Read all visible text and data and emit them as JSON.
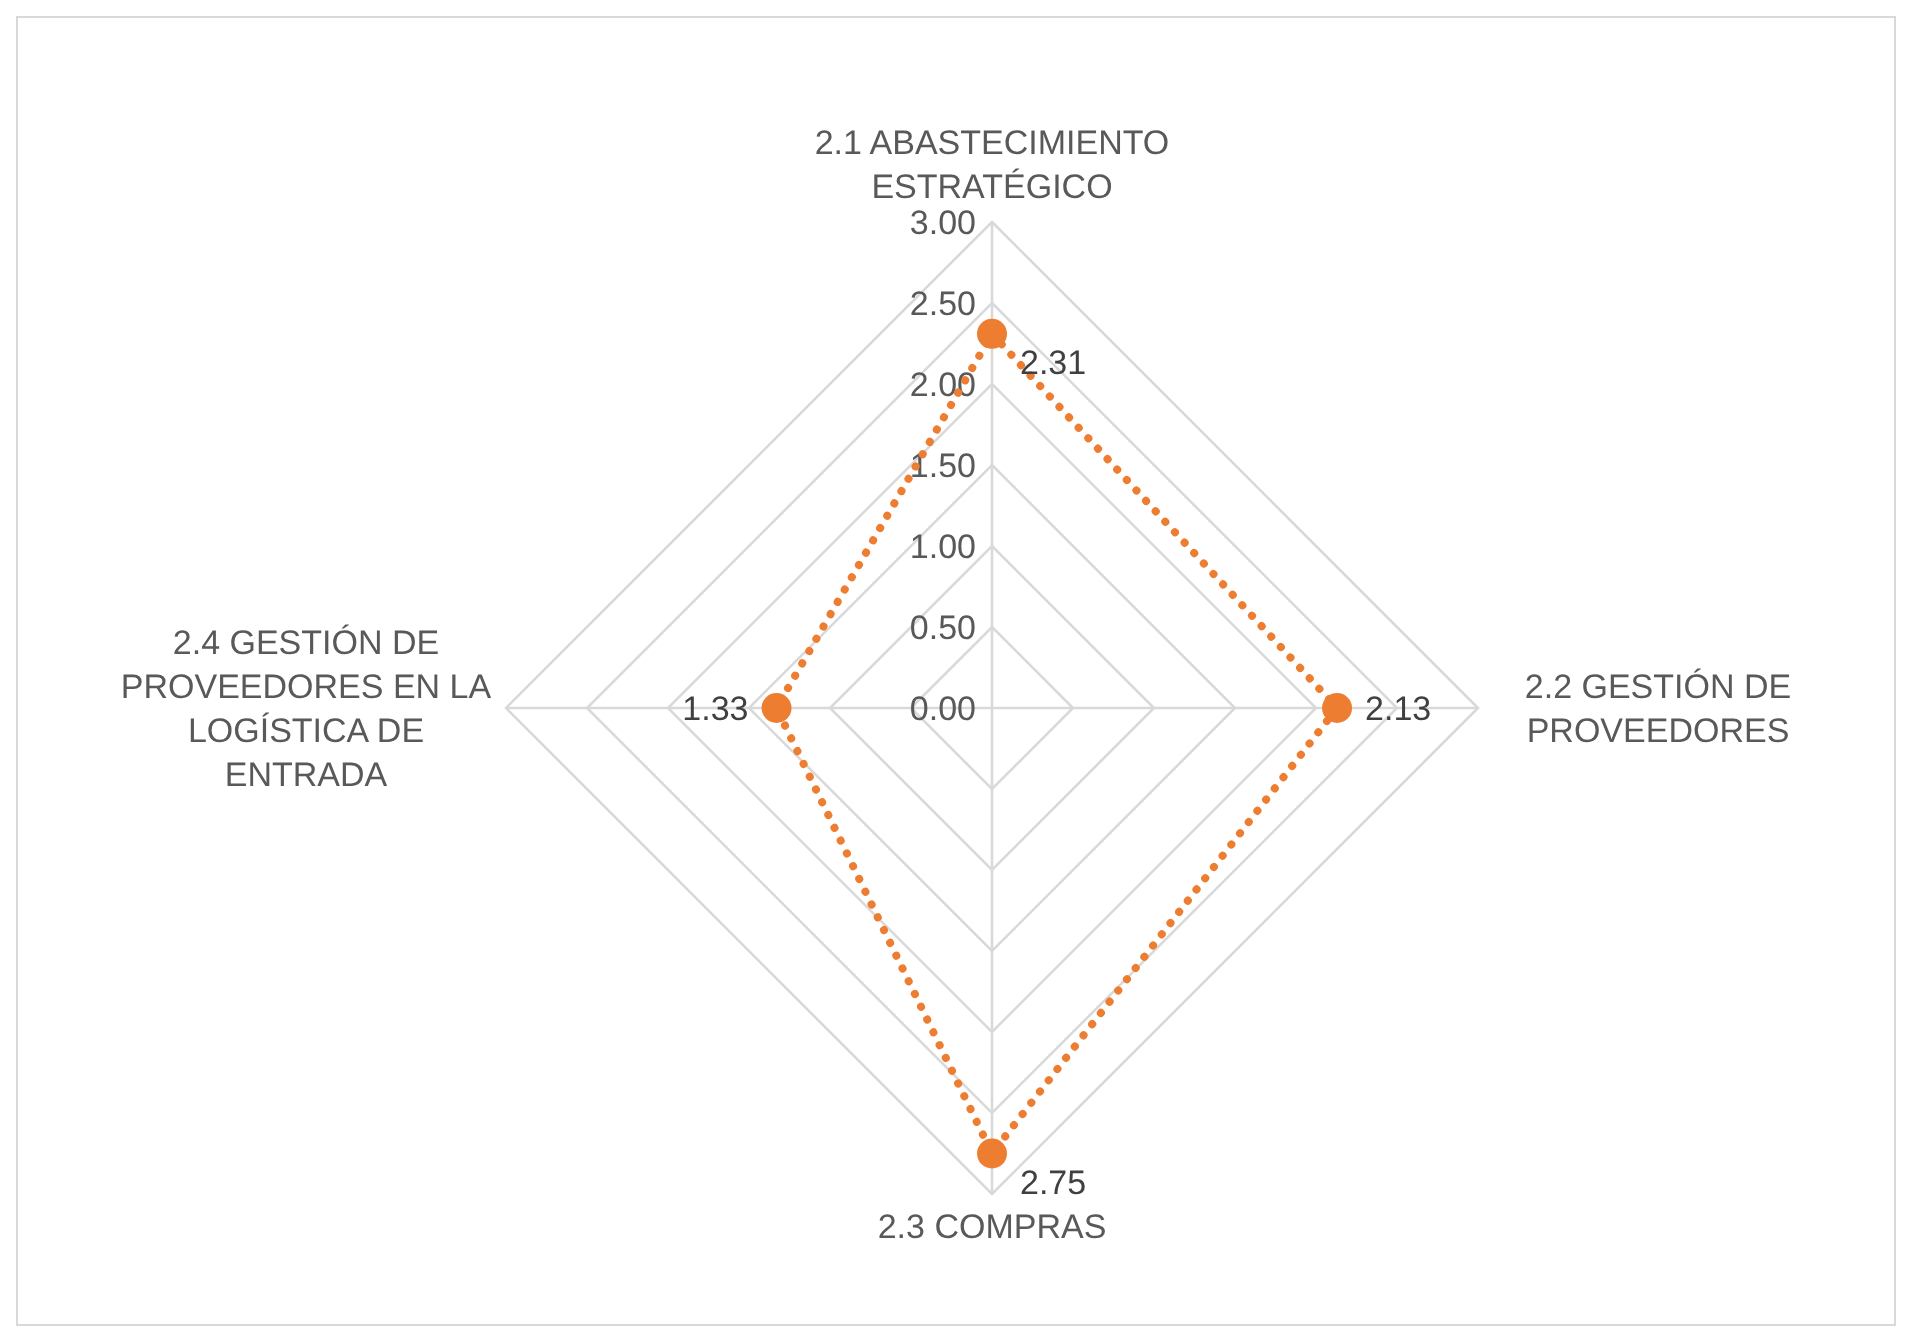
{
  "chart_data": {
    "type": "radar",
    "categories": [
      "2.1 ABASTECIMIENTO ESTRATÉGICO",
      "2.2 GESTIÓN DE PROVEEDORES",
      "2.3 COMPRAS",
      "2.4 GESTIÓN DE PROVEEDORES EN LA LOGÍSTICA DE ENTRADA"
    ],
    "series": [
      {
        "color": "#ed7d31",
        "values": [
          2.31,
          2.13,
          2.75,
          1.33
        ]
      }
    ],
    "ylim": [
      0,
      3
    ],
    "yticks": [
      {
        "value": 0,
        "label": "0.00"
      },
      {
        "value": 0.5,
        "label": "0.50"
      },
      {
        "value": 1,
        "label": "1.00"
      },
      {
        "value": 1.5,
        "label": "1.50"
      },
      {
        "value": 2,
        "label": "2.00"
      },
      {
        "value": 2.5,
        "label": "2.50"
      },
      {
        "value": 3,
        "label": "3.00"
      }
    ],
    "data_labels": true,
    "grid": true,
    "marker": "circle",
    "line_style": "dotted"
  }
}
